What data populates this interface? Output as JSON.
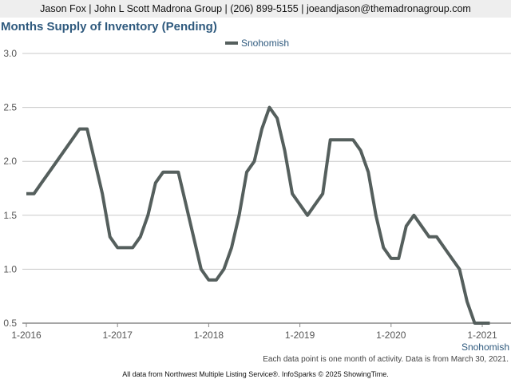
{
  "header": {
    "contact": "Jason Fox | John L Scott Madrona Group | (206) 899-5155 | joeandjason@themadronagroup.com"
  },
  "footnote": "Each data point is one month of activity. Data is from March 30, 2021.",
  "attribution": "All data from Northwest Multiple Listing Service®. InfoSparks © 2025 ShowingTime.",
  "colors": {
    "series": "#555f5d",
    "title": "#2f5a7e",
    "grid": "#c8c8c8"
  },
  "chart_data": {
    "type": "line",
    "title": "Months Supply of Inventory (Pending)",
    "xlabel": "",
    "ylabel": "",
    "ylim": [
      0.5,
      3.0
    ],
    "yticks": [
      "0.5",
      "1.0",
      "1.5",
      "2.0",
      "2.5",
      "3.0"
    ],
    "xticks": [
      "1-2016",
      "1-2017",
      "1-2018",
      "1-2019",
      "1-2020",
      "1-2021"
    ],
    "grid": true,
    "legend": "top-center",
    "series_end_label": "Snohomish",
    "series": [
      {
        "name": "Snohomish",
        "x": [
          "2016-01",
          "2016-02",
          "2016-03",
          "2016-04",
          "2016-05",
          "2016-06",
          "2016-07",
          "2016-08",
          "2016-09",
          "2016-10",
          "2016-11",
          "2016-12",
          "2017-01",
          "2017-02",
          "2017-03",
          "2017-04",
          "2017-05",
          "2017-06",
          "2017-07",
          "2017-08",
          "2017-09",
          "2017-10",
          "2017-11",
          "2017-12",
          "2018-01",
          "2018-02",
          "2018-03",
          "2018-04",
          "2018-05",
          "2018-06",
          "2018-07",
          "2018-08",
          "2018-09",
          "2018-10",
          "2018-11",
          "2018-12",
          "2019-01",
          "2019-02",
          "2019-03",
          "2019-04",
          "2019-05",
          "2019-06",
          "2019-07",
          "2019-08",
          "2019-09",
          "2019-10",
          "2019-11",
          "2019-12",
          "2020-01",
          "2020-02",
          "2020-03",
          "2020-04",
          "2020-05",
          "2020-06",
          "2020-07",
          "2020-08",
          "2020-09",
          "2020-10",
          "2020-11",
          "2020-12",
          "2021-01",
          "2021-02"
        ],
        "values": [
          1.7,
          1.7,
          1.8,
          1.9,
          2.0,
          2.1,
          2.2,
          2.3,
          2.3,
          2.0,
          1.7,
          1.3,
          1.2,
          1.2,
          1.2,
          1.3,
          1.5,
          1.8,
          1.9,
          1.9,
          1.9,
          1.6,
          1.3,
          1.0,
          0.9,
          0.9,
          1.0,
          1.2,
          1.5,
          1.9,
          2.0,
          2.3,
          2.5,
          2.4,
          2.1,
          1.7,
          1.6,
          1.5,
          1.6,
          1.7,
          2.2,
          2.2,
          2.2,
          2.2,
          2.1,
          1.9,
          1.5,
          1.2,
          1.1,
          1.1,
          1.4,
          1.5,
          1.4,
          1.3,
          1.3,
          1.2,
          1.1,
          1.0,
          0.7,
          0.5,
          0.5,
          0.5
        ]
      }
    ]
  }
}
